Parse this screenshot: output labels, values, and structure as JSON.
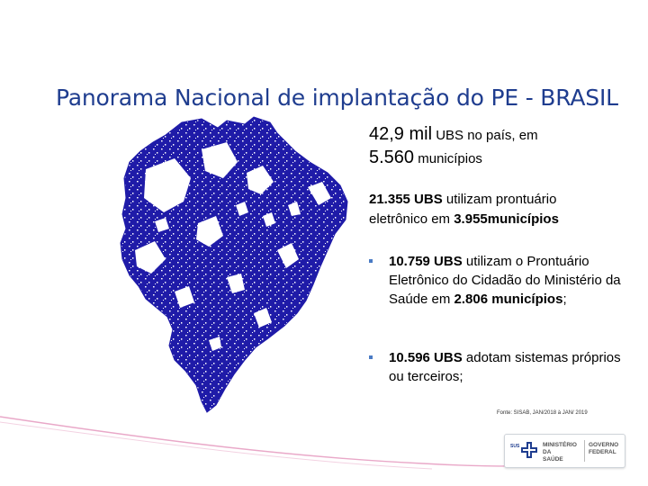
{
  "title": "Panorama Nacional de implantação do PE - BRASIL",
  "stat1": {
    "part1": "42,9 mil",
    "part2": " UBS no país, em",
    "part3": "5.560",
    "part4": " municípios"
  },
  "stat2": {
    "part1": "21.355 UBS",
    "part2": " utilizam prontuário",
    "part3": "eletrônico em ",
    "part4": "3.955municípios"
  },
  "bullet1": {
    "marker": "▪",
    "part1": "10.759 UBS",
    "part2": " utilizam o Prontuário Eletrônico do Cidadão do Ministério da Saúde em ",
    "part3": "2.806 municípios",
    "part4": ";"
  },
  "bullet2": {
    "marker": "▪",
    "part1": "10.596 UBS",
    "part2": " adotam sistemas próprios ou terceiros;"
  },
  "source": "Fonte: SISAB, JAN/2018 à JAN/ 2019",
  "logo": {
    "sus": "SUS",
    "ministerio_line1": "MINISTÉRIO DA",
    "ministerio_line2": "SAÚDE",
    "governo_line1": "GOVERNO",
    "governo_line2": "FEDERAL"
  },
  "colors": {
    "title": "#1f3d8f",
    "map_fill": "#1f1ba8",
    "bullet_marker": "#4a7bc4",
    "swoosh": "#e9a8c8"
  }
}
